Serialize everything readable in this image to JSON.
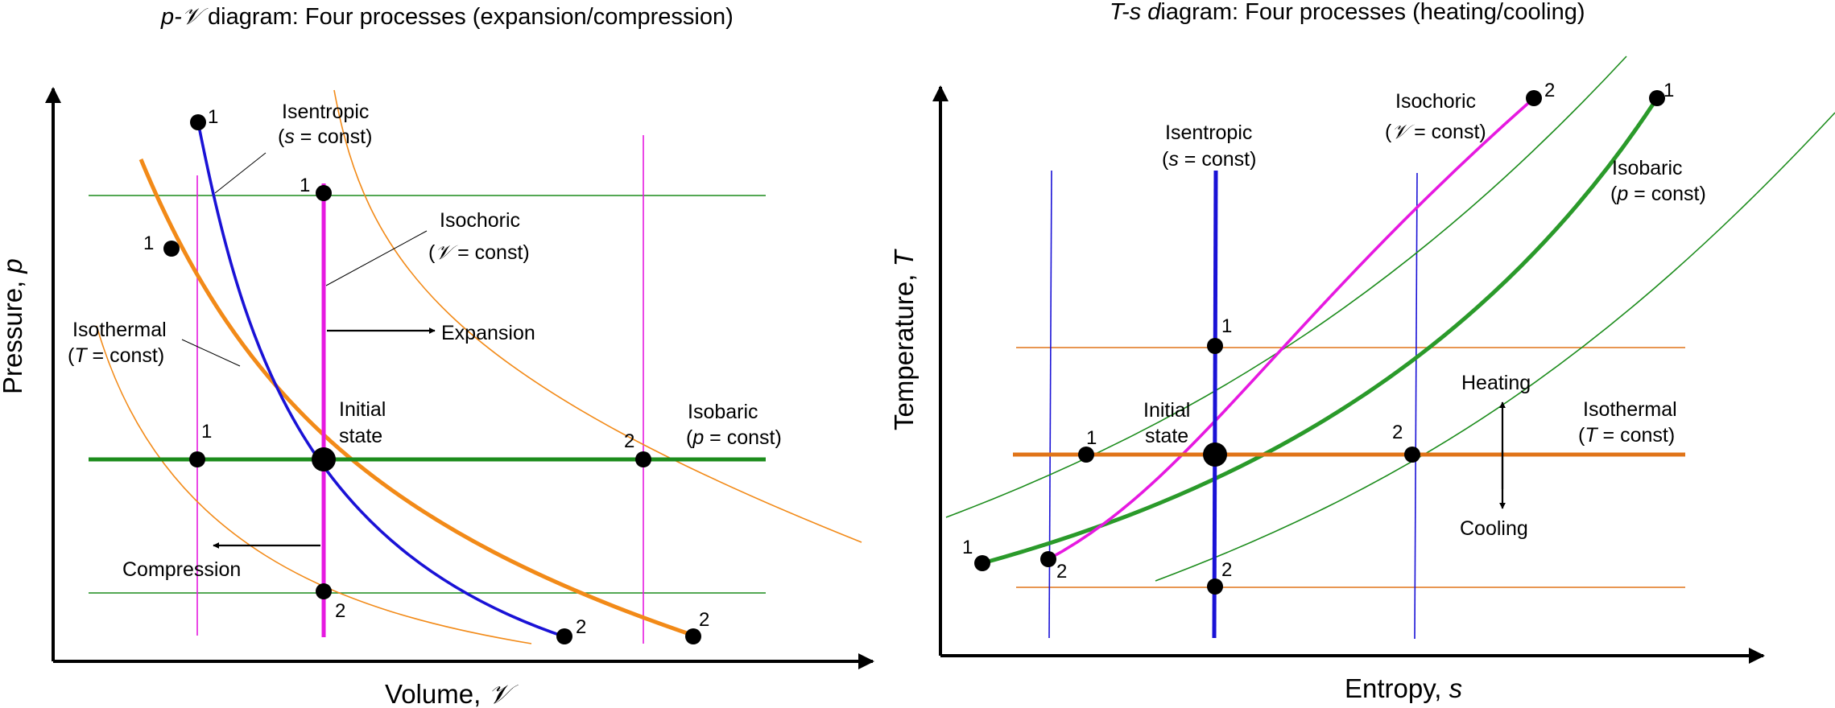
{
  "colors": {
    "isentropic": "#1a12d6",
    "isochoric": "#e619e0",
    "isobaric": "#1c8c1c",
    "isothermal": "#f28a18",
    "isobaric_ts": "#2a9a2a",
    "isothermal_ts": "#e07418",
    "axis": "#000000"
  },
  "pv": {
    "title_italic": "p-𝒱",
    "title_rest": " diagram: Four processes (expansion/compression)",
    "xlabel": "Volume, ",
    "xlabel_sym": "𝒱",
    "ylabel": "Pressure, ",
    "ylabel_sym": "p",
    "isentropic": {
      "line1": "Isentropic",
      "open": "(",
      "sym": "s",
      "rest": " = const)"
    },
    "isochoric": {
      "line1": "Isochoric",
      "open": "(",
      "sym": "𝒱",
      "rest": " = const)"
    },
    "isothermal": {
      "line1": "Isothermal",
      "open": "(",
      "sym": "T",
      "rest": " = const)"
    },
    "isobaric": {
      "line1": "Isobaric",
      "open": "(",
      "sym": "p",
      "rest": " = const)"
    },
    "initial_state": [
      "Initial",
      "state"
    ],
    "expansion": "Expansion",
    "compression": "Compression",
    "points": {
      "isentropic_1": "1",
      "isentropic_2": "2",
      "isochoric_1": "1",
      "isochoric_2": "2",
      "isothermal_1": "1",
      "isothermal_2": "2",
      "isobaric_1": "1",
      "isobaric_2": "2"
    }
  },
  "ts": {
    "title_italic": "T-s",
    "title_d": " d",
    "title_rest": "iagram: Four processes (heating/cooling)",
    "xlabel": "Entropy, ",
    "xlabel_sym": "s",
    "ylabel": "Temperature, ",
    "ylabel_sym": "T",
    "isentropic": {
      "line1": "Isentropic",
      "open": "(",
      "sym": "s",
      "rest": " = const)"
    },
    "isochoric": {
      "line1": "Isochoric",
      "open": "(",
      "sym": "𝒱",
      "rest": " = const)"
    },
    "isobaric": {
      "line1": "Isobaric",
      "open": "(",
      "sym": "p",
      "rest": " = const)"
    },
    "isothermal": {
      "line1": "Isothermal",
      "open": "(",
      "sym": "T",
      "rest": " = const)"
    },
    "initial_state": [
      "Initial",
      "state"
    ],
    "heating": "Heating",
    "cooling": "Cooling",
    "points": {
      "isentropic_1": "1",
      "isentropic_2": "2",
      "isochoric_1": "2",
      "isochoric_2": "2",
      "isobaric_1": "1",
      "isobaric_2": "1",
      "isothermal_1": "1",
      "isothermal_2": "2"
    }
  }
}
